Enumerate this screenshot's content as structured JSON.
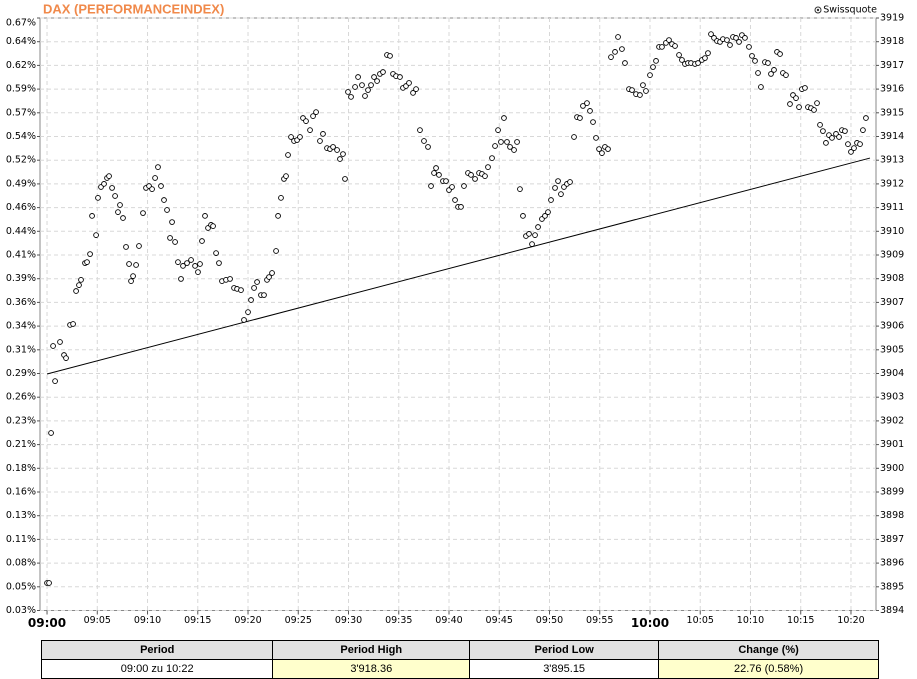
{
  "chart_data": {
    "type": "scatter",
    "title": "DAX (PERFORMANCEINDEX)",
    "source": "Swissquote",
    "color": "#000000",
    "grid": true,
    "xlim": [
      -0.7,
      82.49
    ],
    "xticks": [
      {
        "value": 0,
        "label": "09:00"
      },
      {
        "value": 5,
        "label": "09:05"
      },
      {
        "value": 10,
        "label": "09:10"
      },
      {
        "value": 15,
        "label": "09:15"
      },
      {
        "value": 20,
        "label": "09:20"
      },
      {
        "value": 25,
        "label": "09:25"
      },
      {
        "value": 30,
        "label": "09:30"
      },
      {
        "value": 35,
        "label": "09:35"
      },
      {
        "value": 40,
        "label": "09:40"
      },
      {
        "value": 45,
        "label": "09:45"
      },
      {
        "value": 50,
        "label": "09:50"
      },
      {
        "value": 55,
        "label": "09:55"
      },
      {
        "value": 60,
        "label": "10:00"
      },
      {
        "value": 65,
        "label": "10:05"
      },
      {
        "value": 70,
        "label": "10:10"
      },
      {
        "value": 75,
        "label": "10:15"
      },
      {
        "value": 80,
        "label": "10:20"
      }
    ],
    "ylim": [
      3894,
      3919
    ],
    "yticks": [
      {
        "value": 3919,
        "label": "0.67%"
      },
      {
        "value": 3918,
        "label": "0.64%"
      },
      {
        "value": 3917,
        "label": "0.62%"
      },
      {
        "value": 3916,
        "label": "0.59%"
      },
      {
        "value": 3915,
        "label": "0.57%"
      },
      {
        "value": 3914,
        "label": "0.54%"
      },
      {
        "value": 3913,
        "label": "0.52%"
      },
      {
        "value": 3912,
        "label": "0.49%"
      },
      {
        "value": 3911,
        "label": "0.46%"
      },
      {
        "value": 3910,
        "label": "0.44%"
      },
      {
        "value": 3909,
        "label": "0.41%"
      },
      {
        "value": 3908,
        "label": "0.39%"
      },
      {
        "value": 3907,
        "label": "0.36%"
      },
      {
        "value": 3906,
        "label": "0.34%"
      },
      {
        "value": 3905,
        "label": "0.31%"
      },
      {
        "value": 3904,
        "label": "0.29%"
      },
      {
        "value": 3903,
        "label": "0.26%"
      },
      {
        "value": 3902,
        "label": "0.23%"
      },
      {
        "value": 3901,
        "label": "0.21%"
      },
      {
        "value": 3900,
        "label": "0.18%"
      },
      {
        "value": 3899,
        "label": "0.16%"
      },
      {
        "value": 3898,
        "label": "0.13%"
      },
      {
        "value": 3897,
        "label": "0.11%"
      },
      {
        "value": 3896,
        "label": "0.08%"
      },
      {
        "value": 3895,
        "label": "0.05%"
      },
      {
        "value": 3894,
        "label": "0.03%"
      }
    ],
    "y2lim": [
      3894,
      3919
    ],
    "y2ticks": [
      3919,
      3918,
      3917,
      3916,
      3915,
      3914,
      3913,
      3912,
      3911,
      3910,
      3909,
      3908,
      3907,
      3906,
      3905,
      3904,
      3903,
      3902,
      3901,
      3900,
      3899,
      3898,
      3897,
      3896,
      3895,
      3894
    ],
    "x": [
      0,
      0.2,
      0.4,
      0.6,
      0.8,
      1.29,
      1.69,
      1.89,
      2.29,
      2.59,
      2.89,
      3.18,
      3.38,
      3.78,
      3.98,
      4.28,
      4.48,
      4.88,
      5.07,
      5.37,
      5.67,
      5.97,
      6.17,
      6.47,
      6.77,
      7.06,
      7.26,
      7.56,
      7.86,
      8.16,
      8.36,
      8.56,
      8.86,
      9.15,
      9.55,
      9.85,
      10.15,
      10.45,
      10.75,
      11.04,
      11.34,
      11.64,
      11.94,
      12.24,
      12.44,
      12.74,
      13.03,
      13.33,
      13.53,
      13.93,
      14.33,
      14.73,
      15.02,
      15.22,
      15.42,
      15.72,
      16.02,
      16.32,
      16.52,
      16.82,
      17.11,
      17.41,
      17.81,
      18.21,
      18.61,
      18.91,
      19.3,
      19.6,
      20.0,
      20.3,
      20.6,
      20.9,
      21.29,
      21.59,
      21.89,
      22.09,
      22.39,
      22.79,
      22.99,
      23.28,
      23.58,
      23.78,
      23.98,
      24.28,
      24.58,
      24.88,
      25.17,
      25.47,
      25.77,
      26.17,
      26.47,
      26.77,
      27.16,
      27.46,
      27.86,
      28.16,
      28.46,
      28.86,
      29.15,
      29.45,
      29.65,
      29.95,
      30.25,
      30.65,
      30.95,
      31.34,
      31.64,
      31.94,
      32.24,
      32.54,
      32.84,
      33.13,
      33.43,
      33.83,
      34.13,
      34.43,
      34.73,
      35.12,
      35.42,
      35.72,
      36.02,
      36.42,
      36.72,
      37.11,
      37.51,
      37.91,
      38.21,
      38.51,
      38.71,
      39.0,
      39.4,
      39.7,
      40.0,
      40.3,
      40.6,
      40.9,
      41.19,
      41.49,
      41.89,
      42.19,
      42.59,
      42.99,
      43.28,
      43.58,
      43.88,
      44.28,
      44.58,
      44.88,
      45.17,
      45.47,
      45.77,
      46.07,
      46.47,
      46.77,
      47.06,
      47.36,
      47.66,
      47.96,
      48.26,
      48.56,
      48.86,
      49.25,
      49.55,
      49.85,
      50.15,
      50.55,
      50.85,
      51.14,
      51.44,
      51.74,
      52.04,
      52.44,
      52.74,
      53.03,
      53.33,
      53.73,
      54.03,
      54.33,
      54.63,
      54.93,
      55.22,
      55.52,
      55.82,
      56.12,
      56.52,
      56.82,
      57.21,
      57.51,
      57.91,
      58.21,
      58.61,
      59.0,
      59.3,
      59.6,
      60.0,
      60.3,
      60.6,
      60.9,
      61.19,
      61.59,
      61.89,
      62.19,
      62.49,
      62.89,
      63.18,
      63.48,
      63.78,
      64.08,
      64.48,
      64.78,
      65.17,
      65.47,
      65.77,
      66.07,
      66.37,
      66.67,
      66.97,
      67.26,
      67.66,
      67.96,
      68.26,
      68.56,
      68.86,
      69.15,
      69.45,
      69.85,
      70.15,
      70.45,
      70.75,
      71.04,
      71.44,
      71.74,
      72.04,
      72.34,
      72.64,
      72.94,
      73.23,
      73.53,
      73.93,
      74.23,
      74.53,
      74.83,
      75.12,
      75.42,
      75.72,
      76.02,
      76.32,
      76.62,
      76.92,
      77.21,
      77.51,
      77.81,
      78.11,
      78.51,
      78.81,
      79.1,
      79.4,
      79.7,
      80.0,
      80.3,
      80.6,
      80.9,
      81.19,
      81.49
    ],
    "values": [
      3895.16,
      3895.16,
      3901.49,
      3905.16,
      3903.68,
      3905.33,
      3904.78,
      3904.65,
      3906.05,
      3906.09,
      3907.48,
      3907.73,
      3907.95,
      3908.66,
      3908.7,
      3909.04,
      3910.65,
      3909.84,
      3911.41,
      3911.87,
      3912.0,
      3912.25,
      3912.33,
      3911.83,
      3911.49,
      3910.81,
      3911.11,
      3910.56,
      3909.34,
      3908.62,
      3907.9,
      3908.11,
      3908.58,
      3909.38,
      3910.77,
      3911.83,
      3911.91,
      3911.78,
      3912.25,
      3912.71,
      3911.91,
      3911.32,
      3910.9,
      3909.72,
      3910.39,
      3909.55,
      3908.7,
      3907.99,
      3908.54,
      3908.66,
      3908.79,
      3908.54,
      3908.28,
      3908.62,
      3909.59,
      3910.65,
      3910.14,
      3910.27,
      3910.22,
      3909.08,
      3908.66,
      3907.9,
      3907.95,
      3907.99,
      3907.61,
      3907.57,
      3907.52,
      3906.26,
      3906.59,
      3907.1,
      3907.61,
      3907.86,
      3907.31,
      3907.31,
      3907.95,
      3908.07,
      3908.24,
      3909.17,
      3910.65,
      3911.41,
      3912.21,
      3912.33,
      3913.22,
      3913.98,
      3913.81,
      3913.85,
      3913.98,
      3914.78,
      3914.65,
      3914.27,
      3914.86,
      3915.03,
      3913.81,
      3914.11,
      3913.51,
      3913.47,
      3913.56,
      3913.43,
      3913.05,
      3913.26,
      3912.21,
      3915.88,
      3915.67,
      3916.09,
      3916.51,
      3916.17,
      3915.71,
      3915.96,
      3916.17,
      3916.51,
      3916.34,
      3916.64,
      3916.72,
      3917.44,
      3917.4,
      3916.64,
      3916.55,
      3916.51,
      3916.05,
      3916.13,
      3916.26,
      3915.84,
      3916.0,
      3914.27,
      3913.81,
      3913.56,
      3911.91,
      3912.46,
      3912.67,
      3912.38,
      3912.12,
      3912.12,
      3911.74,
      3911.87,
      3911.32,
      3911.03,
      3911.03,
      3911.91,
      3912.46,
      3912.38,
      3912.21,
      3912.46,
      3912.42,
      3912.33,
      3912.71,
      3913.09,
      3913.6,
      3914.27,
      3913.77,
      3914.78,
      3913.77,
      3913.56,
      3913.43,
      3913.77,
      3911.78,
      3910.65,
      3909.8,
      3909.89,
      3909.46,
      3909.84,
      3910.18,
      3910.52,
      3910.65,
      3910.81,
      3911.32,
      3911.83,
      3912.12,
      3911.57,
      3911.87,
      3912.0,
      3912.08,
      3913.98,
      3914.82,
      3914.78,
      3915.29,
      3915.41,
      3915.08,
      3914.61,
      3913.94,
      3913.47,
      3913.3,
      3913.56,
      3913.47,
      3917.35,
      3917.57,
      3918.2,
      3917.69,
      3917.1,
      3916.0,
      3915.96,
      3915.79,
      3915.75,
      3916.17,
      3915.92,
      3916.59,
      3916.93,
      3917.19,
      3917.78,
      3917.78,
      3917.95,
      3918.07,
      3917.9,
      3917.82,
      3917.44,
      3917.23,
      3917.06,
      3917.1,
      3917.1,
      3917.06,
      3917.1,
      3917.23,
      3917.31,
      3917.52,
      3918.32,
      3918.16,
      3918.03,
      3917.99,
      3918.11,
      3918.07,
      3917.86,
      3918.2,
      3918.16,
      3917.99,
      3918.28,
      3918.16,
      3917.78,
      3917.4,
      3917.19,
      3916.68,
      3916.09,
      3917.14,
      3917.1,
      3916.64,
      3916.81,
      3917.57,
      3917.48,
      3916.68,
      3916.59,
      3915.37,
      3915.75,
      3915.62,
      3915.24,
      3916.0,
      3916.05,
      3915.24,
      3915.2,
      3915.12,
      3915.41,
      3914.49,
      3914.23,
      3913.73,
      3914.06,
      3913.94,
      3914.11,
      3913.98,
      3914.27,
      3914.23,
      3913.68,
      3913.35,
      3913.51,
      3913.73,
      3913.68,
      3914.27,
      3914.78
    ],
    "trendline": {
      "x": [
        0,
        81.89
      ],
      "values": [
        3903.98,
        3913.09
      ]
    }
  },
  "table": {
    "columns": [
      "Period",
      "Period High",
      "Period Low",
      "Change (%)"
    ],
    "rows": [
      [
        "09:00 zu 10:22",
        "3'918.36",
        "3'895.15",
        "22.76 (0.58%)"
      ]
    ]
  }
}
